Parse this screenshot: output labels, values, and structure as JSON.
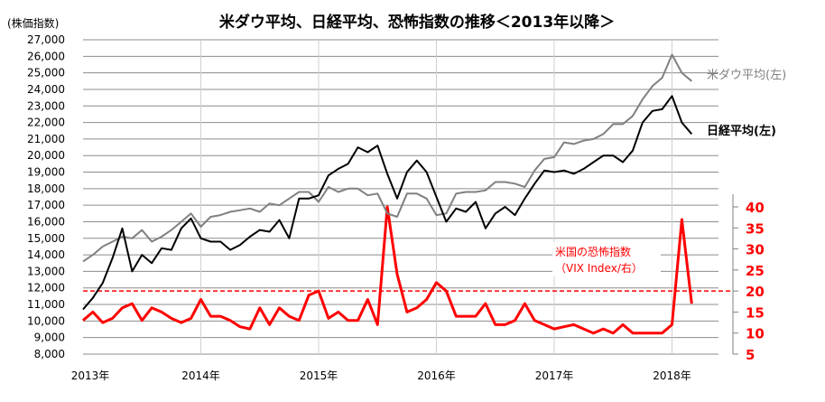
{
  "chart_data": {
    "type": "line",
    "title": "米ダウ平均、日経平均、恐怖指数の推移＜2013年以降＞",
    "ylabel_left": "(株価指数)",
    "ylim_left": [
      8000,
      27000
    ],
    "ylim_right": [
      5,
      40
    ],
    "left_ticks": [
      "27,000",
      "26,000",
      "25,000",
      "24,000",
      "23,000",
      "22,000",
      "21,000",
      "20,000",
      "19,000",
      "18,000",
      "17,000",
      "16,000",
      "15,000",
      "14,000",
      "13,000",
      "12,000",
      "11,000",
      "10,000",
      "9,000",
      "8,000"
    ],
    "right_ticks": [
      "40",
      "35",
      "30",
      "25",
      "20",
      "15",
      "10",
      "5"
    ],
    "x_ticks": [
      "2013年",
      "2014年",
      "2015年",
      "2016年",
      "2017年",
      "2018年"
    ],
    "reference_line": {
      "axis": "right",
      "value": 20,
      "style": "dashed"
    },
    "x_start": 2013.0,
    "x_step_months": 1,
    "series": [
      {
        "name": "米ダウ平均(左)",
        "axis": "left",
        "color": "#808080",
        "values": [
          13600,
          14000,
          14500,
          14800,
          15100,
          15000,
          15500,
          14800,
          15100,
          15500,
          16000,
          16500,
          15700,
          16300,
          16400,
          16600,
          16700,
          16800,
          16600,
          17100,
          17000,
          17400,
          17800,
          17800,
          17200,
          18100,
          17800,
          18000,
          18000,
          17600,
          17700,
          16500,
          16300,
          17700,
          17700,
          17400,
          16400,
          16500,
          17700,
          17800,
          17800,
          17900,
          18400,
          18400,
          18300,
          18100,
          19100,
          19800,
          19900,
          20800,
          20700,
          20900,
          21000,
          21300,
          21900,
          21900,
          22400,
          23400,
          24200,
          24700,
          26100,
          25000,
          24500
        ]
      },
      {
        "name": "日経平均(左)",
        "axis": "left",
        "color": "#000000",
        "values": [
          10700,
          11400,
          12300,
          13800,
          15600,
          13000,
          14000,
          13500,
          14400,
          14300,
          15600,
          16200,
          15000,
          14800,
          14800,
          14300,
          14600,
          15100,
          15500,
          15400,
          16100,
          15000,
          17400,
          17400,
          17600,
          18800,
          19200,
          19500,
          20500,
          20200,
          20600,
          18900,
          17400,
          19000,
          19700,
          19000,
          17500,
          16000,
          16800,
          16600,
          17200,
          15600,
          16500,
          16900,
          16400,
          17400,
          18300,
          19100,
          19000,
          19100,
          18900,
          19200,
          19600,
          20000,
          20000,
          19600,
          20300,
          22000,
          22700,
          22800,
          23600,
          22000,
          21300
        ]
      },
      {
        "name": "米国の恐怖指数（VIX Index/右）",
        "axis": "right",
        "color": "#ff0000",
        "values": [
          13,
          15,
          12.5,
          13.5,
          16,
          17,
          13,
          16,
          15,
          13.5,
          12.5,
          13.5,
          18,
          14,
          14,
          13,
          11.5,
          11,
          16,
          12,
          16,
          14,
          13,
          19,
          20,
          13.5,
          15,
          13,
          13,
          18,
          12,
          40,
          24,
          15,
          16,
          18,
          22,
          20,
          14,
          14,
          14,
          17,
          12,
          12,
          13,
          17,
          13,
          12,
          11,
          11.5,
          12,
          11,
          10,
          11,
          10,
          12,
          10,
          10,
          10,
          10,
          12,
          37,
          17
        ]
      }
    ],
    "annotations": {
      "dow": "米ダウ平均(左)",
      "nikkei": "日経平均(左)",
      "vix_line1": "米国の恐怖指数",
      "vix_line2": "（VIX Index/右）"
    }
  }
}
